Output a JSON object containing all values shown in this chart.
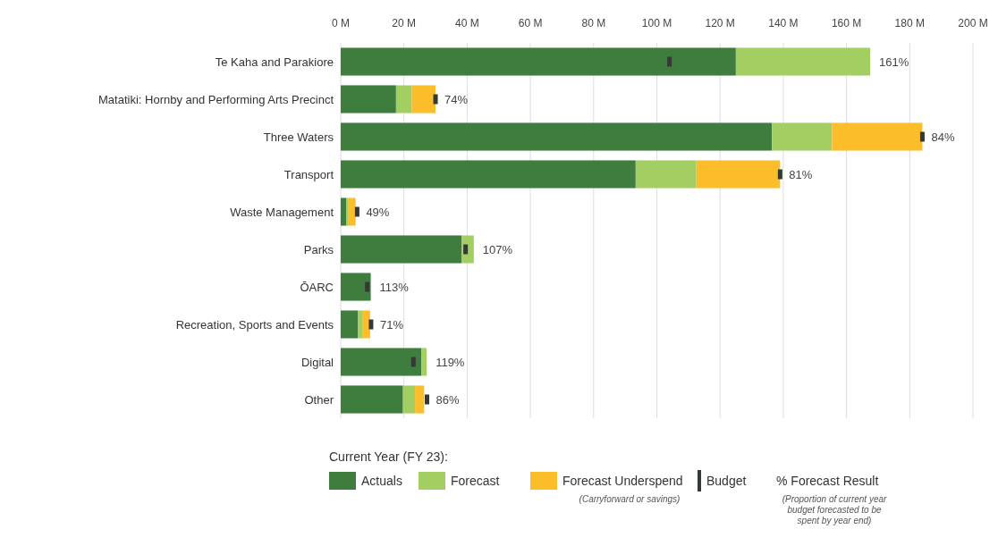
{
  "chart_data": {
    "type": "bar",
    "orientation": "horizontal",
    "stacked": true,
    "categories": [
      "Te Kaha and Parakiore",
      "Matatiki: Hornby and Performing Arts Precinct",
      "Three Waters",
      "Transport",
      "Waste Management",
      "Parks",
      "ŌARC",
      "Recreation, Sports and Events",
      "Digital",
      "Other"
    ],
    "series": [
      {
        "name": "Actuals",
        "color": "#3f7d3f",
        "values": [
          125,
          17.5,
          136.4,
          93.3,
          1.7,
          38.3,
          9.5,
          5.5,
          25.5,
          19.7
        ]
      },
      {
        "name": "Forecast",
        "color": "#a3cf62",
        "values": [
          42.5,
          5,
          19,
          19.2,
          0.6,
          3.8,
          0,
          1.3,
          1.7,
          3.8
        ]
      },
      {
        "name": "Forecast Underspend",
        "color": "#fbbd2a",
        "values": [
          0,
          7.5,
          28.6,
          26.5,
          2.4,
          0,
          0,
          2.5,
          0,
          2.9
        ]
      },
      {
        "name": "Budget",
        "type": "scatter",
        "color": "#333a33",
        "values": [
          104,
          30,
          184,
          139,
          5.2,
          39.5,
          8.4,
          9.6,
          23,
          27.3
        ]
      }
    ],
    "xlim": [
      0,
      200
    ],
    "xticks": [
      {
        "value": 0,
        "label": "0 M"
      },
      {
        "value": 20,
        "label": "20 M"
      },
      {
        "value": 40,
        "label": "40 M"
      },
      {
        "value": 60,
        "label": "60 M"
      },
      {
        "value": 80,
        "label": "80 M"
      },
      {
        "value": 100,
        "label": "100 M"
      },
      {
        "value": 120,
        "label": "120 M"
      },
      {
        "value": 140,
        "label": "140 M"
      },
      {
        "value": 160,
        "label": "160 M"
      },
      {
        "value": 180,
        "label": "180 M"
      },
      {
        "value": 200,
        "label": "200 M"
      }
    ],
    "grid": "x",
    "legend": "bottom",
    "legend_title": "Current Year (FY 23):",
    "annotations": [
      "(Carryforward or savings)",
      "% Forecast Result",
      "(Proportion of current year budget forecasted to be spent by year end)",
      {
        "text": "161%",
        "x": 167.5,
        "y": "Te Kaha and Parakiore"
      },
      {
        "text": "74%",
        "x": 30,
        "y": "Matatiki: Hornby and Performing Arts Precinct"
      },
      {
        "text": "84%",
        "x": 184,
        "y": "Three Waters"
      },
      {
        "text": "81%",
        "x": 139,
        "y": "Transport"
      },
      {
        "text": "49%",
        "x": 5.2,
        "y": "Waste Management"
      },
      {
        "text": "107%",
        "x": 42.1,
        "y": "Parks"
      },
      {
        "text": "113%",
        "x": 9.5,
        "y": "ŌARC"
      },
      {
        "text": "71%",
        "x": 9.6,
        "y": "Recreation, Sports and Events"
      },
      {
        "text": "119%",
        "x": 27.2,
        "y": "Digital"
      },
      {
        "text": "86%",
        "x": 27.3,
        "y": "Other"
      }
    ]
  }
}
